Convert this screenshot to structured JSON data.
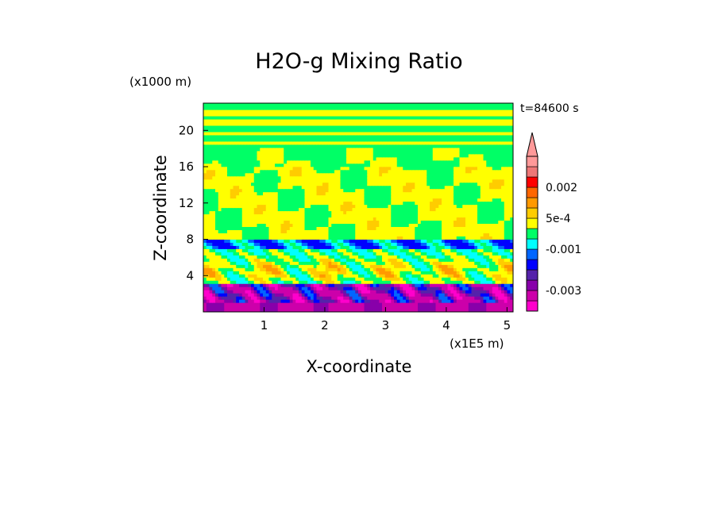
{
  "chart_data": {
    "type": "heatmap",
    "title": "H2O-g Mixing Ratio",
    "xlabel": "X-coordinate",
    "ylabel": "Z-coordinate",
    "x_unit": "(x1E5 m)",
    "y_unit": "(x1000 m)",
    "time_label": "t=84600 s",
    "x_ticks": [
      "1",
      "2",
      "3",
      "4",
      "5"
    ],
    "y_ticks": [
      "4",
      "8",
      "12",
      "16",
      "20"
    ],
    "xlim": [
      0,
      5.1
    ],
    "ylim": [
      0,
      23
    ],
    "colorbar": {
      "labels": [
        {
          "text": "0.002",
          "value": 0.002
        },
        {
          "text": "5e-4",
          "value": 0.0005
        },
        {
          "text": "-0.001",
          "value": -0.001
        },
        {
          "text": "-0.003",
          "value": -0.003
        }
      ],
      "levels": [
        -0.005,
        -0.004,
        -0.003,
        -0.0025,
        -0.002,
        -0.0015,
        -0.001,
        -0.0005,
        0,
        0.0005,
        0.001,
        0.0015,
        0.002,
        0.0025,
        0.003
      ],
      "colors": [
        "#ff00cc",
        "#cc00aa",
        "#8800aa",
        "#5522aa",
        "#0000ff",
        "#0066ff",
        "#00ffff",
        "#00ff66",
        "#ffff00",
        "#ffcc00",
        "#ff9900",
        "#ff6600",
        "#ff0000",
        "#ee7777",
        "#ff9999"
      ],
      "extend": "max"
    }
  }
}
